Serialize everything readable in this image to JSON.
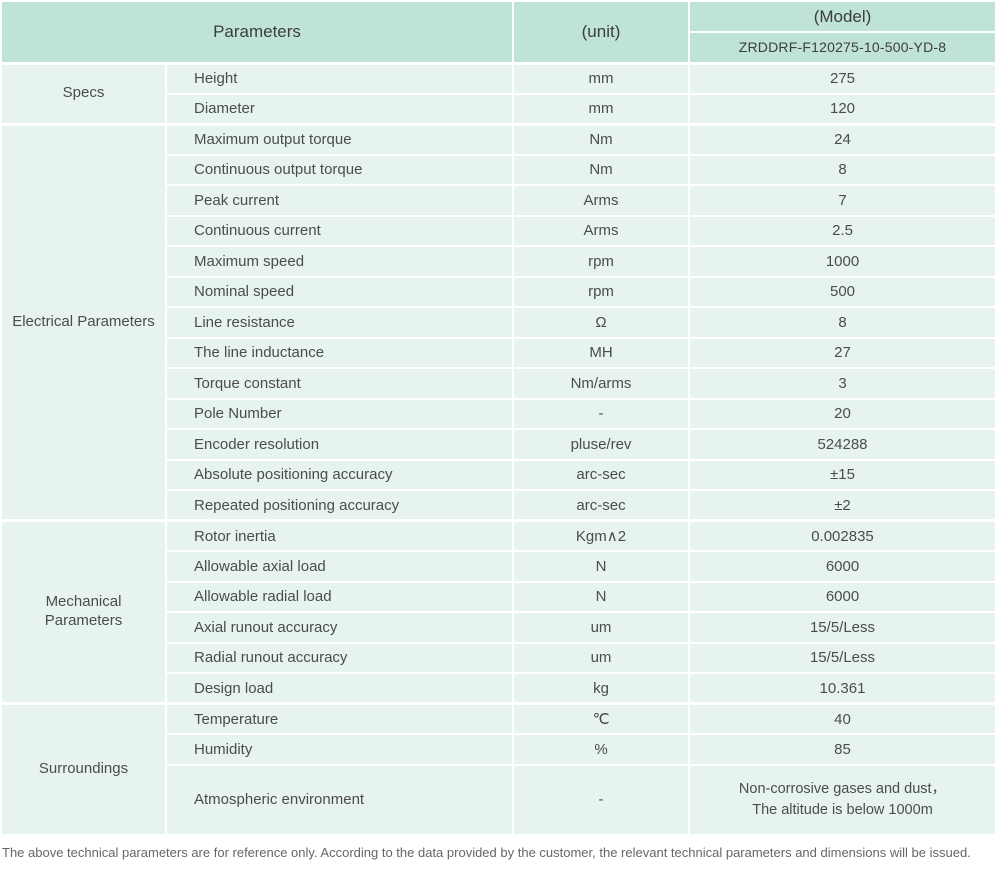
{
  "table": {
    "header": {
      "parameters_label": "Parameters",
      "unit_label": "(unit)",
      "model_label": "(Model)",
      "model_number": "ZRDDRF-F120275-10-500-YD-8"
    },
    "sections": [
      {
        "category": "Specs",
        "rows": [
          {
            "param": "Height",
            "unit": "mm",
            "value": "275"
          },
          {
            "param": "Diameter",
            "unit": "mm",
            "value": "120"
          }
        ]
      },
      {
        "category": "Electrical Parameters",
        "rows": [
          {
            "param": "Maximum output torque",
            "unit": "Nm",
            "value": "24"
          },
          {
            "param": "Continuous output torque",
            "unit": "Nm",
            "value": "8"
          },
          {
            "param": "Peak current",
            "unit": "Arms",
            "value": "7"
          },
          {
            "param": "Continuous current",
            "unit": "Arms",
            "value": "2.5"
          },
          {
            "param": "Maximum speed",
            "unit": "rpm",
            "value": "1000"
          },
          {
            "param": "Nominal speed",
            "unit": "rpm",
            "value": "500"
          },
          {
            "param": "Line resistance",
            "unit": "Ω",
            "value": "8"
          },
          {
            "param": "The line inductance",
            "unit": "MH",
            "value": "27"
          },
          {
            "param": "Torque constant",
            "unit": "Nm/arms",
            "value": "3"
          },
          {
            "param": "Pole Number",
            "unit": "-",
            "value": "20"
          },
          {
            "param": "Encoder resolution",
            "unit": "pluse/rev",
            "value": "524288"
          },
          {
            "param": "Absolute positioning accuracy",
            "unit": "arc-sec",
            "value": "±15"
          },
          {
            "param": "Repeated positioning accuracy",
            "unit": "arc-sec",
            "value": "±2"
          }
        ]
      },
      {
        "category": "Mechanical Parameters",
        "rows": [
          {
            "param": "Rotor inertia",
            "unit": "Kgm∧2",
            "value": "0.002835"
          },
          {
            "param": "Allowable axial load",
            "unit": "N",
            "value": "6000"
          },
          {
            "param": "Allowable radial load",
            "unit": "N",
            "value": "6000"
          },
          {
            "param": "Axial runout accuracy",
            "unit": "um",
            "value": "15/5/Less"
          },
          {
            "param": "Radial runout accuracy",
            "unit": "um",
            "value": "15/5/Less"
          },
          {
            "param": "Design load",
            "unit": "kg",
            "value": "10.361"
          }
        ]
      },
      {
        "category": "Surroundings",
        "rows": [
          {
            "param": "Temperature",
            "unit": "℃",
            "value": "40"
          },
          {
            "param": "Humidity",
            "unit": "%",
            "value": "85"
          },
          {
            "param": "Atmospheric environment",
            "unit": "-",
            "value": "Non-corrosive gases and dust，\nThe altitude is below 1000m",
            "tall": true
          }
        ]
      }
    ]
  },
  "footer": {
    "note": "The above technical parameters are for reference only. According to the data provided by the customer, the relevant technical parameters and dimensions will be issued."
  },
  "colors": {
    "header_bg": "#bfe3d8",
    "cell_bg": "#e7f3f1",
    "divider": "#ffffff"
  }
}
